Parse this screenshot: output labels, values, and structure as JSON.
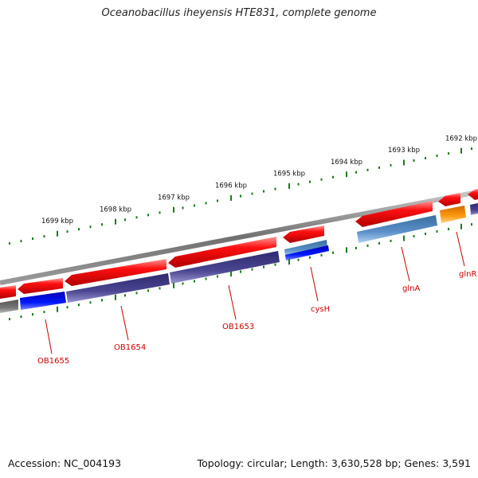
{
  "title": "Oceanobacillus iheyensis HTE831, complete genome",
  "accession": "Accession: NC_004193",
  "summary": "Topology: circular; Length: 3,630,528 bp; Genes: 3,591",
  "ruler": {
    "unit": "kbp",
    "labels": [
      "1699 kbp",
      "1698 kbp",
      "1697 kbp",
      "1696 kbp",
      "1695 kbp",
      "1694 kbp",
      "1693 kbp",
      "1692 kbp"
    ]
  },
  "colors": {
    "backbone": "#7a7a7a",
    "forward_gene": "#e00000",
    "rna": "#44408a",
    "blue_feature": "#0010d8",
    "light_blue_feature": "#4a80b8",
    "orange_feature": "#ff8c00",
    "gray_feature": "#666666",
    "ruler_ticks": "#1a7a1a",
    "gene_label": "#cc0000"
  },
  "gene_labels": [
    "OB1655",
    "OB1654",
    "OB1653",
    "cysH",
    "glnA",
    "glnR"
  ]
}
